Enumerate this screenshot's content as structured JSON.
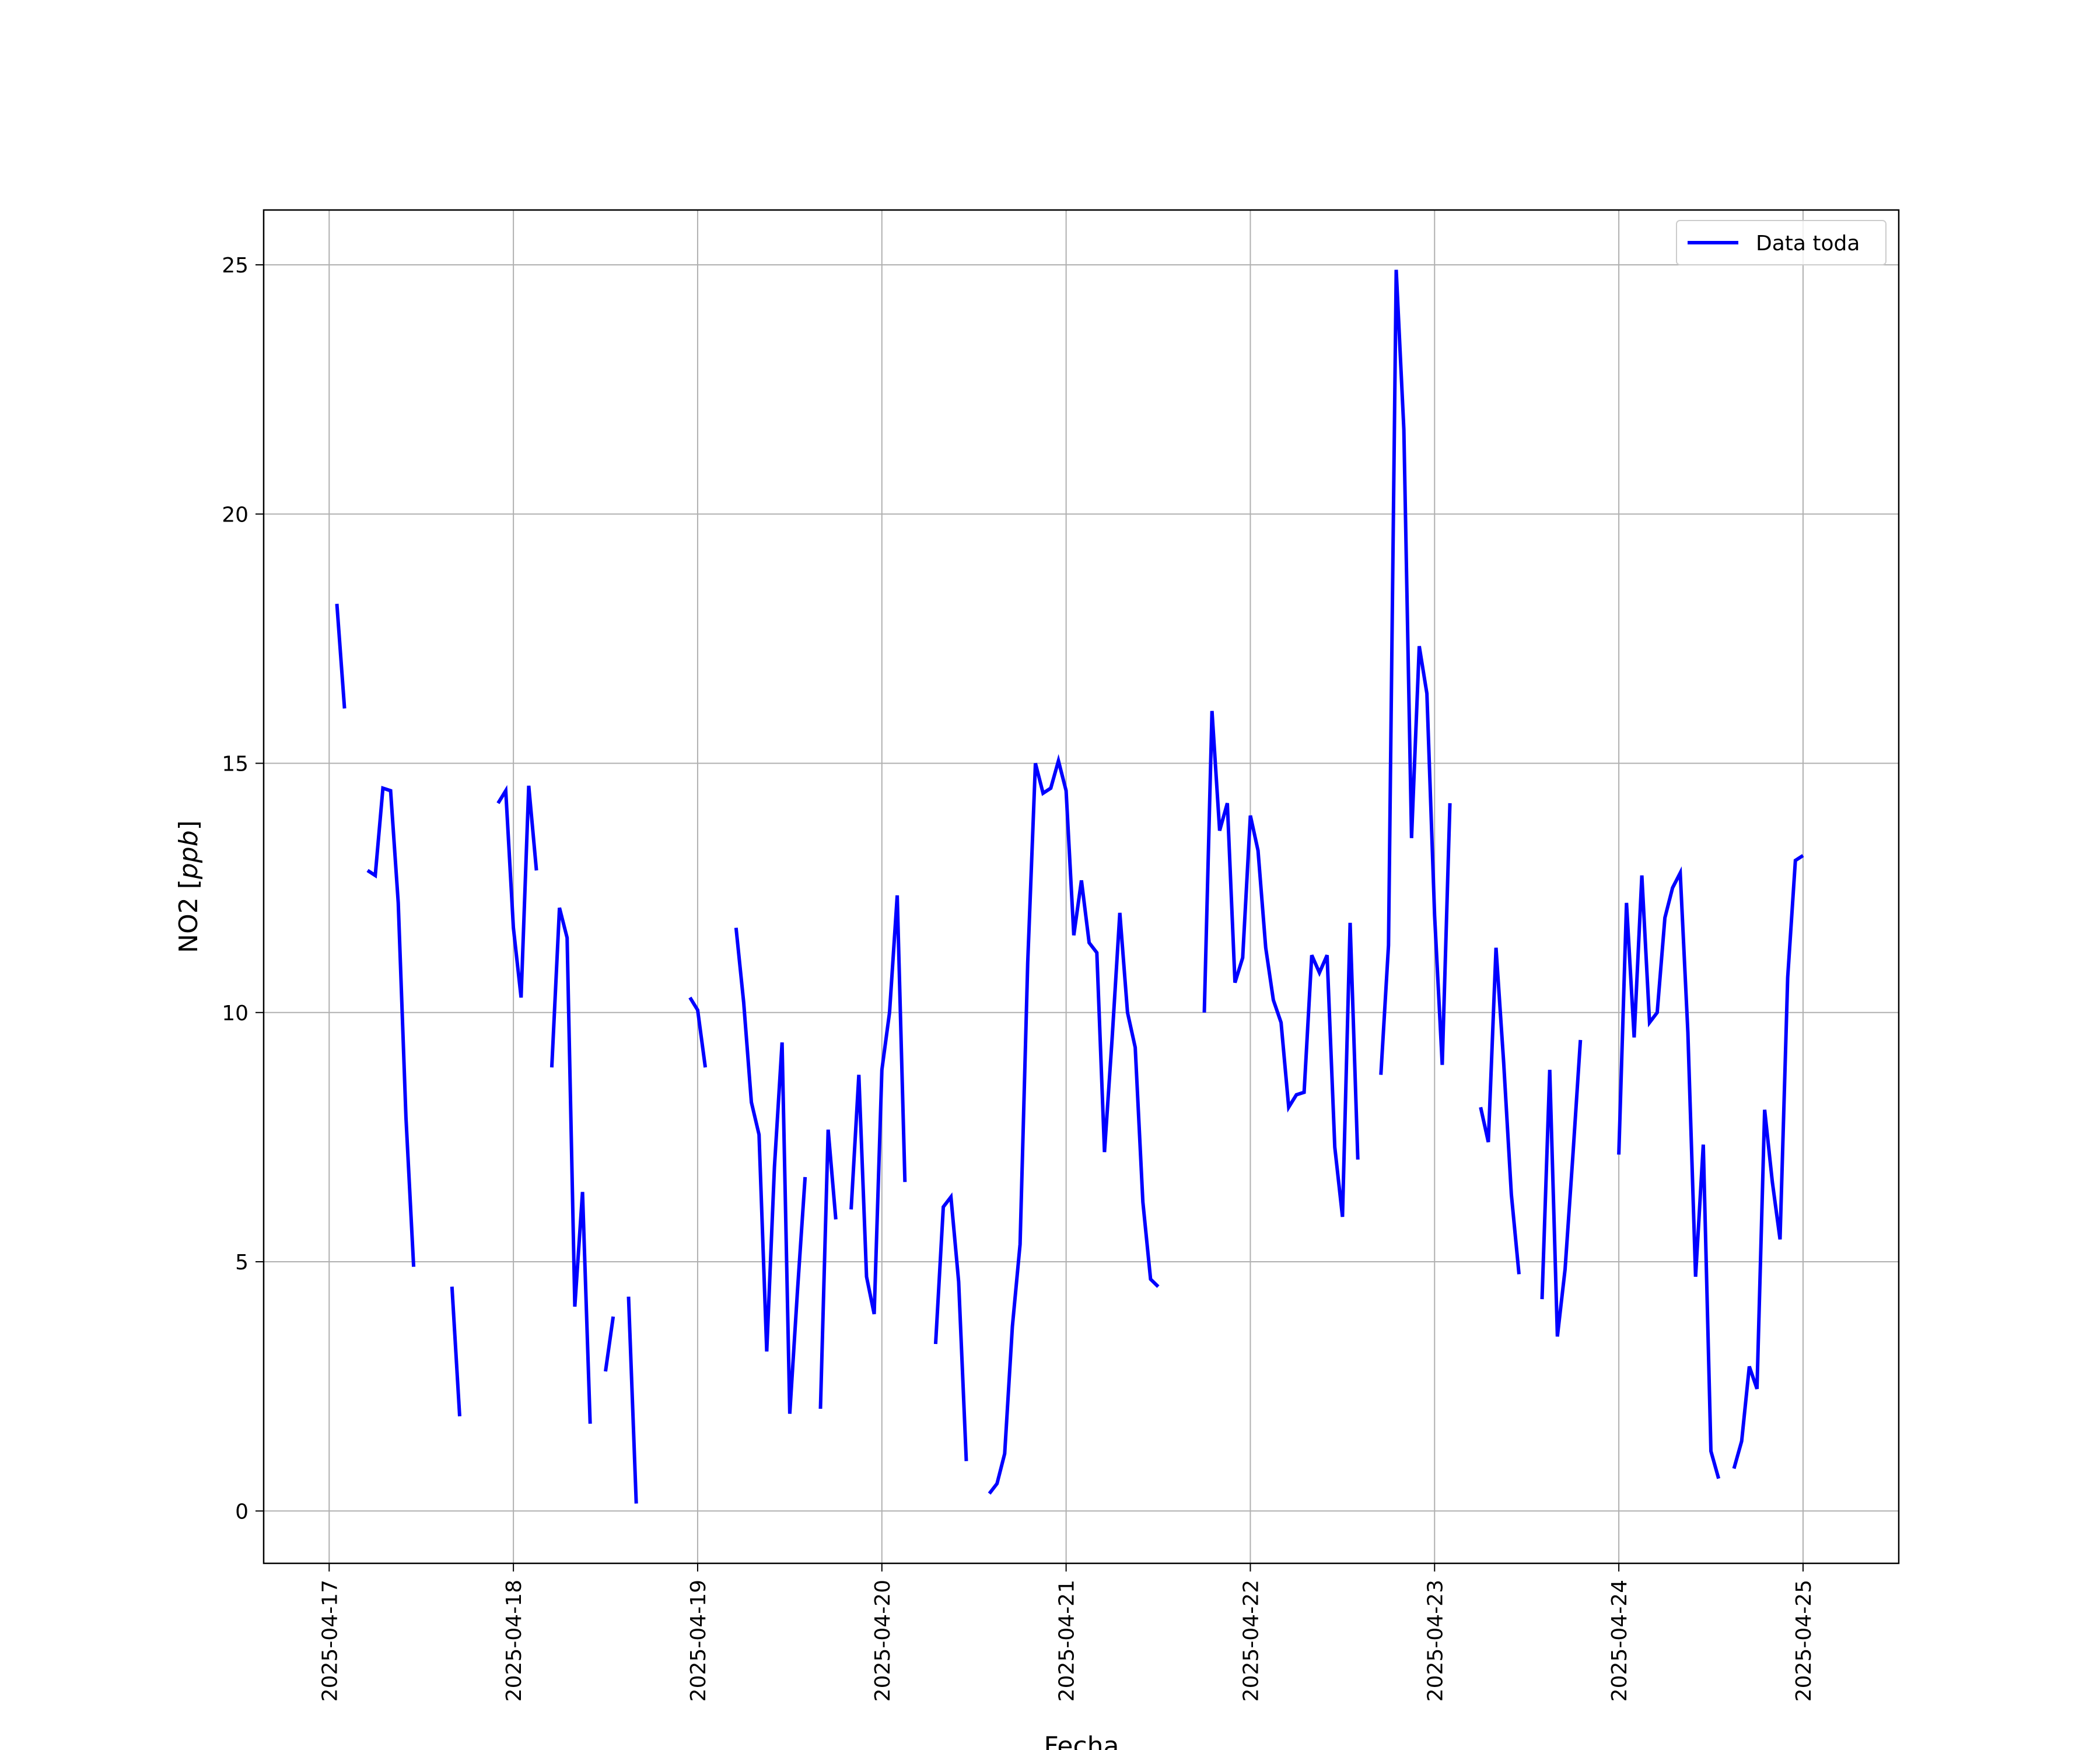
{
  "chart_data": {
    "type": "line",
    "xlabel": "Fecha",
    "ylabel_prefix": "NO2 [",
    "ylabel_unit": "ppb",
    "ylabel_suffix": "]",
    "xlim": [
      "2025-04-16 15:28",
      "2025-04-25 12:28"
    ],
    "ylim": [
      -1.05,
      26.1
    ],
    "x_ticks": [
      "2025-04-17",
      "2025-04-18",
      "2025-04-19",
      "2025-04-20",
      "2025-04-21",
      "2025-04-22",
      "2025-04-23",
      "2025-04-24",
      "2025-04-25"
    ],
    "y_ticks": [
      0,
      5,
      10,
      15,
      20,
      25
    ],
    "grid": true,
    "legend_position": "top-right",
    "series": [
      {
        "name": "Data toda",
        "color": "#0000ff",
        "segments": [
          [
            [
              "2025-04-17 01:00",
              18.2
            ],
            [
              "2025-04-17 02:00",
              16.1
            ]
          ],
          [
            [
              "2025-04-17 05:00",
              12.85
            ],
            [
              "2025-04-17 06:00",
              12.75
            ],
            [
              "2025-04-17 07:00",
              14.5
            ],
            [
              "2025-04-17 08:00",
              14.45
            ],
            [
              "2025-04-17 09:00",
              12.2
            ],
            [
              "2025-04-17 10:00",
              7.9
            ],
            [
              "2025-04-17 11:00",
              4.9
            ]
          ],
          [
            [
              "2025-04-17 16:00",
              4.5
            ],
            [
              "2025-04-17 17:00",
              1.9
            ]
          ],
          [
            [
              "2025-04-17 22:00",
              14.2
            ],
            [
              "2025-04-17 23:00",
              14.45
            ],
            [
              "2025-04-18 00:00",
              11.7
            ],
            [
              "2025-04-18 01:00",
              10.3
            ],
            [
              "2025-04-18 02:00",
              14.55
            ],
            [
              "2025-04-18 03:00",
              12.85
            ]
          ],
          [
            [
              "2025-04-18 05:00",
              8.9
            ],
            [
              "2025-04-18 06:00",
              12.1
            ],
            [
              "2025-04-18 07:00",
              11.5
            ],
            [
              "2025-04-18 08:00",
              4.1
            ],
            [
              "2025-04-18 09:00",
              6.4
            ],
            [
              "2025-04-18 10:00",
              1.75
            ]
          ],
          [
            [
              "2025-04-18 12:00",
              2.8
            ],
            [
              "2025-04-18 13:00",
              3.9
            ]
          ],
          [
            [
              "2025-04-18 15:00",
              4.3
            ],
            [
              "2025-04-18 16:00",
              0.15
            ]
          ],
          [
            [
              "2025-04-18 23:00",
              10.3
            ],
            [
              "2025-04-19 00:00",
              10.05
            ],
            [
              "2025-04-19 01:00",
              8.9
            ]
          ],
          [
            [
              "2025-04-19 05:00",
              11.7
            ],
            [
              "2025-04-19 06:00",
              10.2
            ],
            [
              "2025-04-19 07:00",
              8.2
            ],
            [
              "2025-04-19 08:00",
              7.55
            ],
            [
              "2025-04-19 09:00",
              3.2
            ],
            [
              "2025-04-19 10:00",
              6.9
            ],
            [
              "2025-04-19 11:00",
              9.4
            ],
            [
              "2025-04-19 12:00",
              1.95
            ],
            [
              "2025-04-19 13:00",
              4.4
            ],
            [
              "2025-04-19 14:00",
              6.7
            ]
          ],
          [
            [
              "2025-04-19 16:00",
              2.05
            ],
            [
              "2025-04-19 17:00",
              7.65
            ],
            [
              "2025-04-19 18:00",
              5.85
            ]
          ],
          [
            [
              "2025-04-19 20:00",
              6.05
            ],
            [
              "2025-04-19 21:00",
              8.75
            ],
            [
              "2025-04-19 22:00",
              4.7
            ],
            [
              "2025-04-19 23:00",
              3.95
            ],
            [
              "2025-04-20 00:00",
              8.85
            ],
            [
              "2025-04-20 01:00",
              10.0
            ],
            [
              "2025-04-20 02:00",
              12.35
            ],
            [
              "2025-04-20 03:00",
              6.6
            ]
          ],
          [
            [
              "2025-04-20 07:00",
              3.35
            ],
            [
              "2025-04-20 08:00",
              6.1
            ],
            [
              "2025-04-20 09:00",
              6.3
            ],
            [
              "2025-04-20 10:00",
              4.6
            ],
            [
              "2025-04-20 11:00",
              1.0
            ]
          ],
          [
            [
              "2025-04-20 14:00",
              0.35
            ],
            [
              "2025-04-20 15:00",
              0.55
            ],
            [
              "2025-04-20 16:00",
              1.15
            ],
            [
              "2025-04-20 17:00",
              3.7
            ],
            [
              "2025-04-20 18:00",
              5.35
            ],
            [
              "2025-04-20 19:00",
              11.0
            ],
            [
              "2025-04-20 20:00",
              15.0
            ],
            [
              "2025-04-20 21:00",
              14.4
            ],
            [
              "2025-04-20 22:00",
              14.5
            ],
            [
              "2025-04-20 23:00",
              15.05
            ],
            [
              "2025-04-21 00:00",
              14.45
            ],
            [
              "2025-04-21 01:00",
              11.55
            ],
            [
              "2025-04-21 02:00",
              12.65
            ],
            [
              "2025-04-21 03:00",
              11.4
            ],
            [
              "2025-04-21 04:00",
              11.2
            ],
            [
              "2025-04-21 05:00",
              7.2
            ],
            [
              "2025-04-21 06:00",
              9.5
            ],
            [
              "2025-04-21 07:00",
              12.0
            ],
            [
              "2025-04-21 08:00",
              10.0
            ],
            [
              "2025-04-21 09:00",
              9.3
            ],
            [
              "2025-04-21 10:00",
              6.2
            ],
            [
              "2025-04-21 11:00",
              4.65
            ],
            [
              "2025-04-21 12:00",
              4.5
            ]
          ],
          [
            [
              "2025-04-21 18:00",
              10.0
            ],
            [
              "2025-04-21 19:00",
              16.05
            ],
            [
              "2025-04-21 20:00",
              13.65
            ],
            [
              "2025-04-21 21:00",
              14.2
            ],
            [
              "2025-04-21 22:00",
              10.6
            ],
            [
              "2025-04-21 23:00",
              11.1
            ],
            [
              "2025-04-22 00:00",
              13.95
            ],
            [
              "2025-04-22 01:00",
              13.25
            ],
            [
              "2025-04-22 02:00",
              11.3
            ],
            [
              "2025-04-22 03:00",
              10.25
            ],
            [
              "2025-04-22 04:00",
              9.8
            ],
            [
              "2025-04-22 05:00",
              8.1
            ],
            [
              "2025-04-22 06:00",
              8.35
            ],
            [
              "2025-04-22 07:00",
              8.4
            ],
            [
              "2025-04-22 08:00",
              11.15
            ],
            [
              "2025-04-22 09:00",
              10.8
            ],
            [
              "2025-04-22 10:00",
              11.15
            ],
            [
              "2025-04-22 11:00",
              7.3
            ],
            [
              "2025-04-22 12:00",
              5.9
            ],
            [
              "2025-04-22 13:00",
              11.8
            ],
            [
              "2025-04-22 14:00",
              7.05
            ]
          ],
          [
            [
              "2025-04-22 17:00",
              8.75
            ],
            [
              "2025-04-22 18:00",
              11.35
            ],
            [
              "2025-04-22 19:00",
              24.9
            ],
            [
              "2025-04-22 20:00",
              21.7
            ],
            [
              "2025-04-22 21:00",
              13.5
            ],
            [
              "2025-04-22 22:00",
              17.35
            ],
            [
              "2025-04-22 23:00",
              16.4
            ],
            [
              "2025-04-23 00:00",
              11.95
            ],
            [
              "2025-04-23 01:00",
              8.95
            ],
            [
              "2025-04-23 02:00",
              14.2
            ]
          ],
          [
            [
              "2025-04-23 06:00",
              8.1
            ],
            [
              "2025-04-23 07:00",
              7.4
            ],
            [
              "2025-04-23 08:00",
              11.3
            ],
            [
              "2025-04-23 09:00",
              9.0
            ],
            [
              "2025-04-23 10:00",
              6.35
            ],
            [
              "2025-04-23 11:00",
              4.75
            ]
          ],
          [
            [
              "2025-04-23 14:00",
              4.25
            ],
            [
              "2025-04-23 15:00",
              8.85
            ],
            [
              "2025-04-23 16:00",
              3.5
            ],
            [
              "2025-04-23 17:00",
              4.85
            ],
            [
              "2025-04-23 18:00",
              7.1
            ],
            [
              "2025-04-23 19:00",
              9.45
            ]
          ],
          [
            [
              "2025-04-24 00:00",
              7.15
            ],
            [
              "2025-04-24 01:00",
              12.2
            ],
            [
              "2025-04-24 02:00",
              9.5
            ],
            [
              "2025-04-24 03:00",
              12.75
            ],
            [
              "2025-04-24 04:00",
              9.8
            ],
            [
              "2025-04-24 05:00",
              10.0
            ],
            [
              "2025-04-24 06:00",
              11.9
            ],
            [
              "2025-04-24 07:00",
              12.5
            ],
            [
              "2025-04-24 08:00",
              12.8
            ],
            [
              "2025-04-24 09:00",
              9.6
            ],
            [
              "2025-04-24 10:00",
              4.7
            ],
            [
              "2025-04-24 11:00",
              7.35
            ],
            [
              "2025-04-24 12:00",
              1.2
            ],
            [
              "2025-04-24 13:00",
              0.65
            ]
          ],
          [
            [
              "2025-04-24 15:00",
              0.85
            ],
            [
              "2025-04-24 16:00",
              1.4
            ],
            [
              "2025-04-24 17:00",
              2.9
            ],
            [
              "2025-04-24 18:00",
              2.45
            ],
            [
              "2025-04-24 19:00",
              8.05
            ],
            [
              "2025-04-24 20:00",
              6.6
            ],
            [
              "2025-04-24 21:00",
              5.45
            ],
            [
              "2025-04-24 22:00",
              10.7
            ],
            [
              "2025-04-24 23:00",
              13.05
            ],
            [
              "2025-04-25 00:00",
              13.15
            ]
          ]
        ]
      }
    ]
  }
}
